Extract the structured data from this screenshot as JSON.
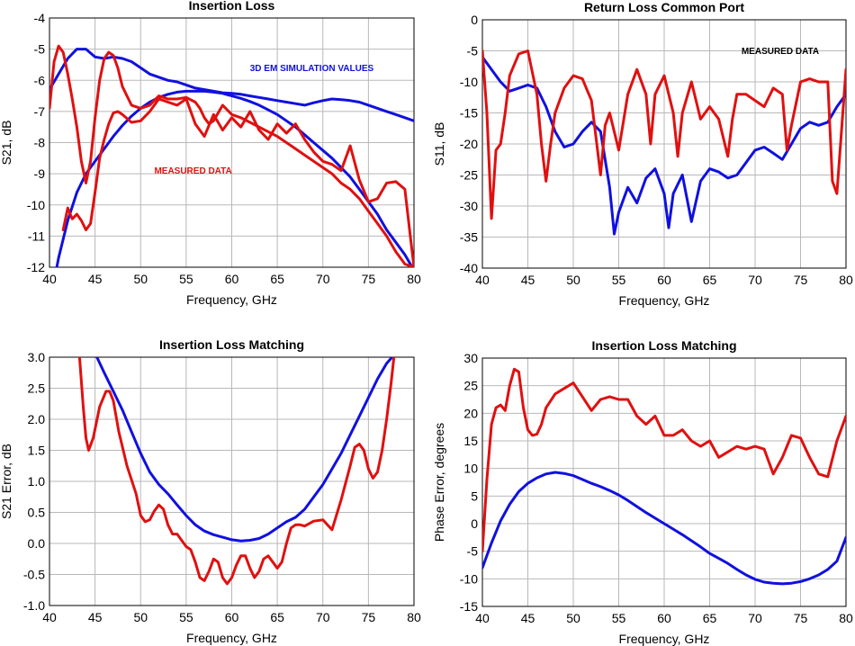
{
  "chart_data": [
    {
      "type": "line",
      "title": "Insertion Loss",
      "xlabel": "Frequency, GHz",
      "ylabel": "S21, dB",
      "xlim": [
        40,
        80
      ],
      "ylim": [
        -12,
        -4
      ],
      "xticks": [
        "40",
        "45",
        "50",
        "55",
        "60",
        "65",
        "70",
        "75",
        "80"
      ],
      "yticks": [
        "-4",
        "-5",
        "-6",
        "-7",
        "-8",
        "-9",
        "-10",
        "-11",
        "-12"
      ],
      "grid": true,
      "annotations": [
        {
          "text": "3D EM SIMULATION VALUES",
          "x": 62,
          "y": -5.7,
          "color": "#1010e0"
        },
        {
          "text": "MEASURED DATA",
          "x": 51.5,
          "y": -9.0,
          "color": "#e01010"
        }
      ],
      "series": [
        {
          "color": "#1010e0",
          "x": [
            40,
            41,
            42,
            43,
            44,
            45,
            46,
            47,
            48,
            49,
            50,
            51,
            52,
            53,
            54,
            55,
            56,
            57,
            58,
            59,
            60,
            61,
            62,
            63,
            64,
            65,
            66,
            67,
            68,
            69,
            70,
            71,
            72,
            73,
            74,
            75,
            76,
            77,
            78,
            79,
            80
          ],
          "y": [
            -6.3,
            -5.8,
            -5.3,
            -5.0,
            -5.0,
            -5.25,
            -5.3,
            -5.25,
            -5.3,
            -5.4,
            -5.6,
            -5.8,
            -5.9,
            -6.0,
            -6.05,
            -6.15,
            -6.25,
            -6.3,
            -6.35,
            -6.4,
            -6.42,
            -6.45,
            -6.5,
            -6.55,
            -6.6,
            -6.65,
            -6.7,
            -6.75,
            -6.8,
            -6.72,
            -6.65,
            -6.6,
            -6.62,
            -6.65,
            -6.7,
            -6.8,
            -6.9,
            -7.0,
            -7.1,
            -7.2,
            -7.3
          ]
        },
        {
          "color": "#1010e0",
          "x": [
            40.8,
            41,
            42,
            43,
            44,
            45,
            46,
            47,
            48,
            49,
            50,
            51,
            52,
            53,
            54,
            55,
            56,
            57,
            58,
            59,
            60,
            61,
            62,
            63,
            64,
            65,
            66,
            67,
            68,
            69,
            70,
            71,
            72,
            73,
            74,
            75,
            76,
            77,
            78,
            79,
            79.8
          ],
          "y": [
            -12.0,
            -11.7,
            -10.5,
            -9.6,
            -9.0,
            -8.6,
            -8.2,
            -7.8,
            -7.45,
            -7.15,
            -6.9,
            -6.7,
            -6.55,
            -6.45,
            -6.38,
            -6.35,
            -6.35,
            -6.35,
            -6.38,
            -6.42,
            -6.5,
            -6.58,
            -6.68,
            -6.8,
            -6.95,
            -7.1,
            -7.3,
            -7.5,
            -7.75,
            -8.0,
            -8.25,
            -8.5,
            -8.8,
            -9.1,
            -9.5,
            -9.9,
            -10.3,
            -10.8,
            -11.2,
            -11.6,
            -12.0
          ]
        },
        {
          "color": "#e01010",
          "x": [
            40,
            40.5,
            41,
            41.5,
            42,
            42.5,
            43,
            43.5,
            44,
            44.5,
            45,
            45.5,
            46,
            46.5,
            47,
            47.5,
            48,
            49,
            50,
            51,
            52,
            53,
            54,
            55,
            56,
            56.5,
            57,
            57.5,
            58,
            59,
            60,
            61,
            62,
            63,
            64,
            65,
            66,
            67,
            68,
            69,
            70,
            71,
            72,
            73,
            74,
            75,
            76,
            77,
            78,
            79,
            80
          ],
          "y": [
            -6.9,
            -5.4,
            -4.9,
            -5.1,
            -5.8,
            -6.6,
            -7.5,
            -8.6,
            -9.3,
            -8.6,
            -7.2,
            -6.0,
            -5.3,
            -5.1,
            -5.2,
            -5.6,
            -6.2,
            -6.8,
            -6.9,
            -6.8,
            -6.5,
            -6.6,
            -6.6,
            -6.55,
            -6.7,
            -6.9,
            -7.2,
            -7.4,
            -7.3,
            -6.8,
            -7.1,
            -7.2,
            -7.35,
            -7.5,
            -7.65,
            -7.8,
            -8.0,
            -8.2,
            -8.4,
            -8.6,
            -8.8,
            -9.0,
            -9.3,
            -9.5,
            -9.8,
            -10.2,
            -10.6,
            -11.0,
            -11.5,
            -11.9,
            -12.0
          ]
        },
        {
          "color": "#e01010",
          "x": [
            41.5,
            42,
            42.5,
            43,
            43.5,
            44,
            44.5,
            45,
            45.5,
            46,
            46.5,
            47,
            47.5,
            48,
            49,
            50,
            51,
            52,
            53,
            54,
            55,
            56,
            57,
            58,
            59,
            60,
            61,
            62,
            63,
            64,
            65,
            66,
            67,
            68,
            69,
            70,
            71,
            72,
            73,
            74,
            75,
            76,
            77,
            78,
            79,
            79.6,
            80
          ],
          "y": [
            -10.8,
            -10.1,
            -10.45,
            -10.3,
            -10.5,
            -10.8,
            -10.6,
            -9.6,
            -8.5,
            -7.9,
            -7.4,
            -7.05,
            -7.0,
            -7.1,
            -7.35,
            -7.3,
            -7.0,
            -6.6,
            -6.7,
            -6.8,
            -6.6,
            -7.4,
            -7.8,
            -7.1,
            -7.6,
            -7.2,
            -7.5,
            -7.0,
            -7.6,
            -7.9,
            -7.4,
            -7.7,
            -7.4,
            -7.9,
            -8.3,
            -8.6,
            -8.7,
            -8.9,
            -8.1,
            -9.2,
            -9.9,
            -9.8,
            -9.3,
            -9.25,
            -9.5,
            -11.0,
            -12.0
          ]
        }
      ]
    },
    {
      "type": "line",
      "title": "Return Loss Common Port",
      "xlabel": "Frequency, GHz",
      "ylabel": "S11, dB",
      "xlim": [
        40,
        80
      ],
      "ylim": [
        -40,
        0
      ],
      "xticks": [
        "40",
        "45",
        "50",
        "55",
        "60",
        "65",
        "70",
        "75",
        "80"
      ],
      "yticks": [
        "0",
        "-5",
        "-10",
        "-15",
        "-20",
        "-25",
        "-30",
        "-35",
        "-40"
      ],
      "grid": true,
      "annotations": [
        {
          "text": "MEASURED DATA",
          "x": 68.5,
          "y": -5.5,
          "color": "#000000"
        }
      ],
      "series": [
        {
          "color": "#1010e0",
          "x": [
            40,
            41,
            42,
            43,
            44,
            45,
            46,
            47,
            48,
            49,
            50,
            51,
            52,
            53,
            54,
            54.5,
            55,
            56,
            57,
            58,
            59,
            60,
            60.5,
            61,
            62,
            63,
            64,
            65,
            66,
            67,
            68,
            69,
            70,
            71,
            72,
            73,
            74,
            75,
            76,
            77,
            78,
            79,
            80
          ],
          "y": [
            -6,
            -8,
            -10,
            -11.5,
            -11,
            -10.5,
            -11,
            -14,
            -18,
            -20.5,
            -20,
            -18,
            -16.5,
            -18,
            -27,
            -34.5,
            -31,
            -27,
            -29.5,
            -25.5,
            -24,
            -28,
            -33.5,
            -28,
            -25,
            -32.5,
            -26,
            -24,
            -24.5,
            -25.5,
            -25,
            -23,
            -21,
            -20.5,
            -21.5,
            -22.5,
            -20,
            -17.5,
            -16.5,
            -17,
            -16.5,
            -14,
            -12
          ]
        },
        {
          "color": "#e01010",
          "x": [
            40,
            40.5,
            41,
            41.5,
            42,
            42.5,
            43,
            44,
            45,
            46,
            46.5,
            47,
            47.5,
            48,
            49,
            50,
            51,
            52,
            53,
            53.5,
            54,
            55,
            56,
            57,
            58,
            58.5,
            59,
            60,
            61,
            61.5,
            62,
            63,
            64,
            65,
            66,
            67,
            67.5,
            68,
            69,
            70,
            71,
            72,
            73,
            73.5,
            74,
            75,
            76,
            77,
            78,
            78.5,
            79,
            80
          ],
          "y": [
            -5,
            -15,
            -32,
            -21,
            -20,
            -15,
            -9,
            -5.5,
            -5,
            -12,
            -20,
            -26,
            -20,
            -15,
            -11,
            -9,
            -9.5,
            -13,
            -25,
            -17,
            -15,
            -21,
            -12,
            -8,
            -12,
            -20,
            -12,
            -9,
            -15,
            -22,
            -15,
            -10,
            -16,
            -14,
            -16,
            -22,
            -16,
            -12,
            -12,
            -13,
            -14,
            -11,
            -12,
            -21,
            -17,
            -10,
            -9.5,
            -10,
            -10,
            -26,
            -28,
            -8
          ]
        }
      ]
    },
    {
      "type": "line",
      "title": "Insertion Loss Matching",
      "xlabel": "Frequency, GHz",
      "ylabel": "S21 Error, dB",
      "xlim": [
        40,
        80
      ],
      "ylim": [
        -1.0,
        3.0
      ],
      "xticks": [
        "40",
        "45",
        "50",
        "55",
        "60",
        "65",
        "70",
        "75",
        "80"
      ],
      "yticks": [
        "3.0",
        "2.5",
        "2.0",
        "1.5",
        "1.0",
        "0.5",
        "0.0",
        "-0.5",
        "-1.0"
      ],
      "grid": true,
      "series": [
        {
          "color": "#1010e0",
          "x": [
            45.2,
            46,
            47,
            48,
            49,
            50,
            51,
            52,
            53,
            54,
            55,
            56,
            57,
            58,
            59,
            60,
            61,
            62,
            63,
            64,
            65,
            66,
            67,
            68,
            69,
            70,
            71,
            72,
            73,
            74,
            75,
            76,
            77,
            77.6
          ],
          "y": [
            3.0,
            2.75,
            2.45,
            2.15,
            1.8,
            1.45,
            1.15,
            0.95,
            0.8,
            0.62,
            0.45,
            0.3,
            0.2,
            0.14,
            0.1,
            0.06,
            0.04,
            0.05,
            0.08,
            0.15,
            0.25,
            0.35,
            0.42,
            0.55,
            0.75,
            0.95,
            1.2,
            1.45,
            1.75,
            2.05,
            2.35,
            2.65,
            2.9,
            3.0
          ]
        },
        {
          "color": "#e01010",
          "x": [
            43.3,
            43.7,
            44,
            44.3,
            44.8,
            45.5,
            46.2,
            46.6,
            47,
            47.6,
            48.5,
            49.5,
            50,
            50.5,
            51,
            51.5,
            52,
            52.5,
            53,
            53.5,
            54,
            54.5,
            55,
            55.5,
            56,
            56.5,
            57,
            57.5,
            58,
            58.5,
            59,
            59.5,
            60,
            60.5,
            61,
            61.5,
            62,
            62.5,
            63,
            63.5,
            64,
            64.5,
            65,
            65.5,
            66,
            66.5,
            67,
            67.5,
            68,
            69,
            70,
            70.5,
            71,
            72,
            73,
            73.5,
            74,
            74.5,
            75,
            75.5,
            76,
            76.5,
            77,
            77.5,
            77.8
          ],
          "y": [
            3.0,
            2.2,
            1.7,
            1.5,
            1.7,
            2.2,
            2.45,
            2.45,
            2.3,
            1.8,
            1.25,
            0.8,
            0.45,
            0.35,
            0.38,
            0.52,
            0.62,
            0.55,
            0.3,
            0.15,
            0.15,
            0.05,
            -0.05,
            -0.1,
            -0.3,
            -0.55,
            -0.6,
            -0.45,
            -0.25,
            -0.3,
            -0.55,
            -0.65,
            -0.55,
            -0.35,
            -0.2,
            -0.2,
            -0.4,
            -0.55,
            -0.45,
            -0.25,
            -0.2,
            -0.3,
            -0.4,
            -0.3,
            0.0,
            0.25,
            0.3,
            0.3,
            0.28,
            0.36,
            0.38,
            0.3,
            0.22,
            0.7,
            1.25,
            1.55,
            1.6,
            1.5,
            1.2,
            1.05,
            1.15,
            1.5,
            2.0,
            2.6,
            3.0
          ]
        }
      ]
    },
    {
      "type": "line",
      "title": "Insertion Loss Matching",
      "xlabel": "Frequency, GHz",
      "ylabel": "Phase Error, degrees",
      "xlim": [
        40,
        80
      ],
      "ylim": [
        -15,
        30
      ],
      "xticks": [
        "40",
        "45",
        "50",
        "55",
        "60",
        "65",
        "70",
        "75",
        "80"
      ],
      "yticks": [
        "30",
        "25",
        "20",
        "15",
        "10",
        "5",
        "0",
        "-5",
        "-10",
        "-15"
      ],
      "grid": true,
      "series": [
        {
          "color": "#1010e0",
          "x": [
            40,
            41,
            42,
            43,
            44,
            45,
            46,
            47,
            48,
            49,
            50,
            51,
            52,
            53,
            54,
            55,
            56,
            57,
            58,
            59,
            60,
            61,
            62,
            63,
            64,
            65,
            66,
            67,
            68,
            69,
            70,
            71,
            72,
            73,
            74,
            75,
            76,
            77,
            78,
            79,
            80
          ],
          "y": [
            -8,
            -3.5,
            0.5,
            3.5,
            5.8,
            7.3,
            8.3,
            9.0,
            9.3,
            9.1,
            8.7,
            8.0,
            7.3,
            6.7,
            6.0,
            5.2,
            4.2,
            3.1,
            2.0,
            1.0,
            0.0,
            -1.0,
            -2.0,
            -3.1,
            -4.2,
            -5.4,
            -6.3,
            -7.2,
            -8.3,
            -9.3,
            -10.1,
            -10.6,
            -10.8,
            -10.9,
            -10.8,
            -10.5,
            -10.0,
            -9.3,
            -8.3,
            -6.8,
            -2.5
          ]
        },
        {
          "color": "#e01010",
          "x": [
            40,
            40.5,
            41,
            41.5,
            42,
            42.5,
            43,
            43.5,
            44,
            44.5,
            45,
            45.5,
            46,
            46.5,
            47,
            48,
            49,
            50,
            51,
            52,
            53,
            54,
            55,
            56,
            57,
            58,
            59,
            60,
            61,
            62,
            63,
            64,
            65,
            66,
            67,
            68,
            69,
            70,
            71,
            72,
            73,
            74,
            75,
            76,
            77,
            78,
            79,
            80
          ],
          "y": [
            -5,
            8,
            18,
            21,
            21.5,
            20.5,
            25,
            28,
            27.5,
            21,
            17,
            16,
            16.2,
            18,
            21,
            23.5,
            24.5,
            25.5,
            23,
            20.5,
            22.5,
            23,
            22.5,
            22.5,
            19.5,
            18,
            19.5,
            16,
            16,
            17,
            15,
            14,
            15,
            12,
            13,
            14,
            13.5,
            14,
            13.5,
            9,
            12,
            16,
            15.5,
            12,
            9,
            8.5,
            15,
            19.5
          ]
        }
      ]
    }
  ]
}
